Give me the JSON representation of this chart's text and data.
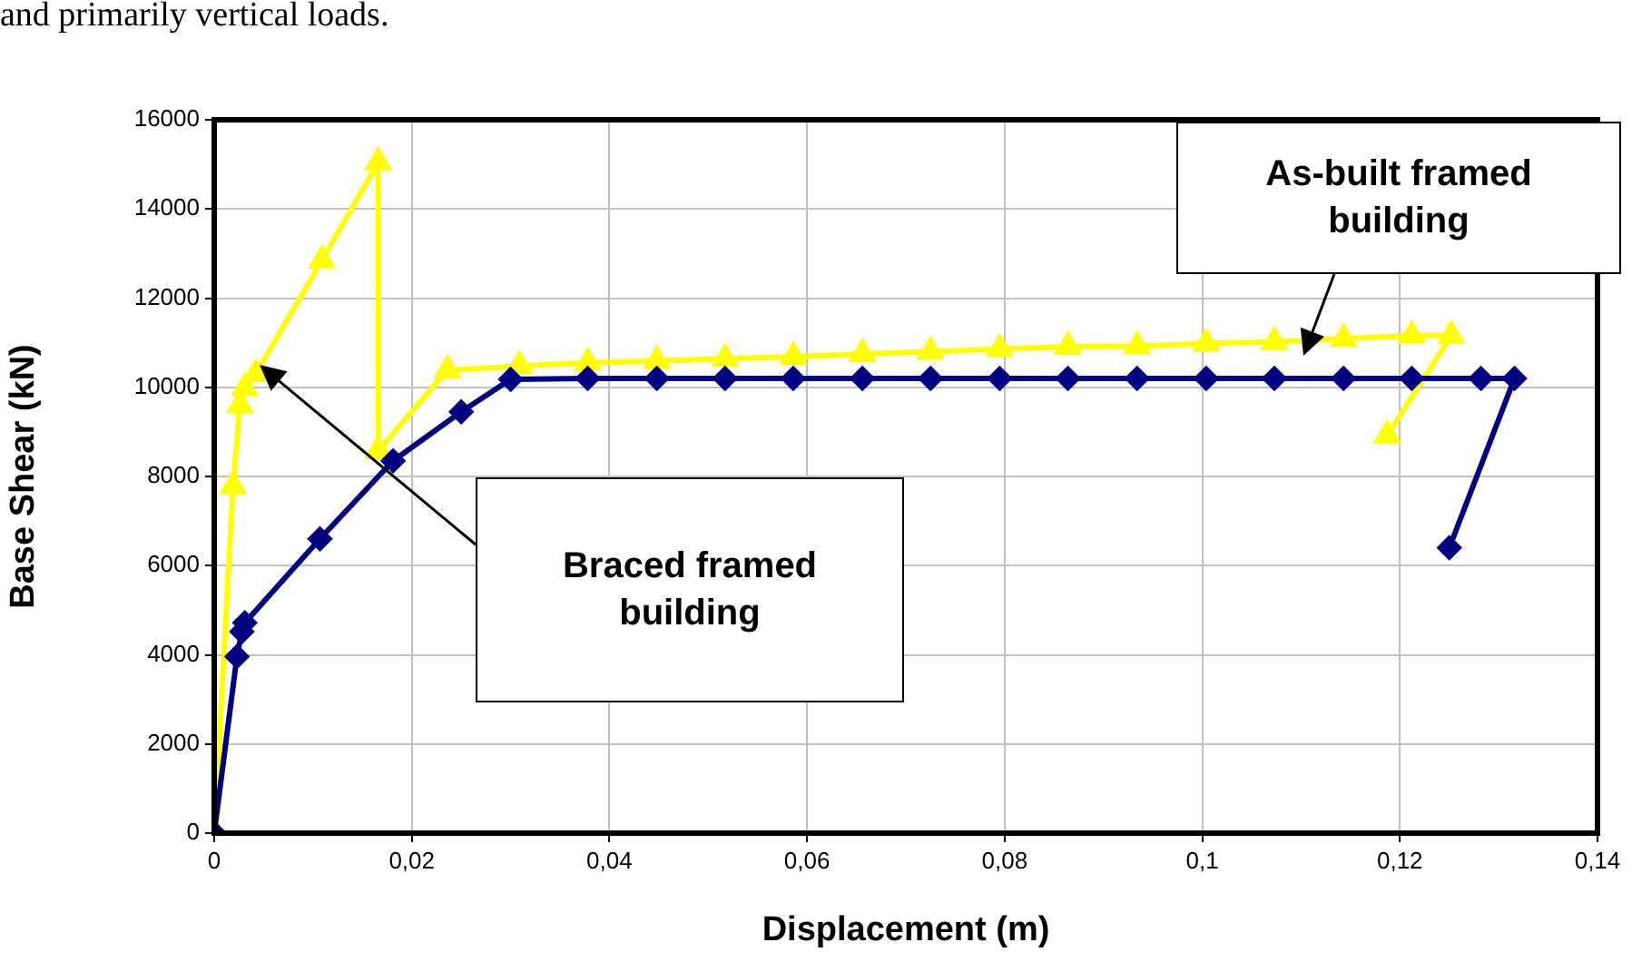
{
  "chart_data": {
    "type": "line",
    "xlabel": "Displacement (m)",
    "ylabel": "Base Shear (kN)",
    "xlim": [
      0,
      0.14
    ],
    "xticks": [
      0,
      {
        "value": 0.02,
        "label": "0,02"
      },
      {
        "value": 0.04,
        "label": "0,04"
      },
      {
        "value": 0.06,
        "label": "0,06"
      },
      {
        "value": 0.08,
        "label": "0,08"
      },
      {
        "value": 0.1,
        "label": "0,1"
      },
      {
        "value": 0.12,
        "label": "0,12"
      },
      {
        "value": 0.14,
        "label": "0,14"
      }
    ],
    "ylim": [
      0,
      16000
    ],
    "yticks": [
      0,
      2000,
      4000,
      6000,
      8000,
      10000,
      12000,
      14000,
      16000
    ],
    "grid": true,
    "legend": false,
    "line_style": "solid",
    "series": [
      {
        "color": "#000080",
        "marker": "diamond",
        "x": [
          0,
          0.0023,
          0.0028,
          0.0031,
          0.0107,
          0.0181,
          0.025,
          0.03,
          0.0378,
          0.0448,
          0.0517,
          0.0586,
          0.0656,
          0.0725,
          0.0795,
          0.0864,
          0.0934,
          0.1004,
          0.1073,
          0.1143,
          0.1212,
          0.1282,
          0.1316,
          0.125
        ],
        "values": [
          0,
          3960,
          4520,
          4720,
          6600,
          8350,
          9450,
          10180,
          10200,
          10200,
          10200,
          10200,
          10200,
          10200,
          10200,
          10200,
          10200,
          10200,
          10200,
          10200,
          10200,
          10200,
          10200,
          6400
        ]
      },
      {
        "color": "#ffff00",
        "marker": "triangle",
        "x": [
          0,
          0.0019,
          0.0026,
          0.0031,
          0.0042,
          0.0109,
          0.0166,
          0.0166,
          0.0236,
          0.0309,
          0.0378,
          0.0448,
          0.0517,
          0.0586,
          0.0656,
          0.0725,
          0.0795,
          0.0864,
          0.0934,
          0.1004,
          0.1073,
          0.1143,
          0.1212,
          0.1252,
          0.1187
        ],
        "values": [
          0,
          7780,
          9600,
          9980,
          10300,
          12850,
          15050,
          8580,
          10380,
          10480,
          10550,
          10590,
          10640,
          10680,
          10750,
          10800,
          10860,
          10910,
          10920,
          10980,
          11020,
          11090,
          11160,
          11160,
          8920
        ]
      }
    ],
    "annotations": [
      "and primarily vertical loads.",
      "Braced framed building",
      "As-built framed building"
    ]
  }
}
